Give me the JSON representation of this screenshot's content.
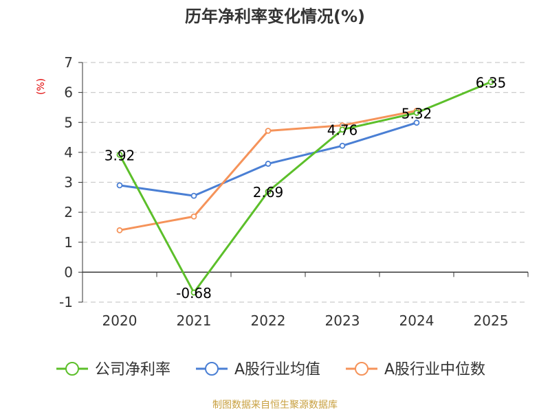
{
  "chart_data": {
    "type": "line",
    "title": "历年净利率变化情况(%)",
    "ylabel": "(%)",
    "source": "制图数据来自恒生聚源数据库",
    "categories": [
      "2020",
      "2021",
      "2022",
      "2023",
      "2024",
      "2025"
    ],
    "ylim": [
      -1,
      7
    ],
    "yticks": [
      -1,
      0,
      1,
      2,
      3,
      4,
      5,
      6,
      7
    ],
    "grid": true,
    "legend_position": "bottom",
    "series": [
      {
        "name": "公司净利率",
        "color": "#5cbf2a",
        "values": [
          3.92,
          -0.68,
          2.69,
          4.76,
          5.32,
          6.35
        ],
        "labels": [
          "3.92",
          "-0.68",
          "2.69",
          "4.76",
          "5.32",
          "6.35"
        ]
      },
      {
        "name": "A股行业均值",
        "color": "#4a7fd4",
        "values": [
          2.9,
          2.55,
          3.62,
          4.22,
          4.99,
          null
        ]
      },
      {
        "name": "A股行业中位数",
        "color": "#f5935a",
        "values": [
          1.4,
          1.86,
          4.72,
          4.9,
          5.39,
          null
        ]
      }
    ]
  }
}
